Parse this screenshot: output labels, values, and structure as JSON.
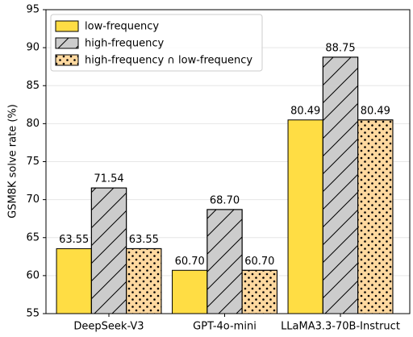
{
  "chart_data": {
    "type": "bar",
    "y_label": "GSM8K solve rate (%)",
    "categories": [
      "DeepSeek-V3",
      "GPT-4o-mini",
      "LLaMA3.3-70B-Instruct"
    ],
    "series": [
      {
        "name": "low-frequency",
        "color": "#ffdd44",
        "hatch": "none",
        "values": [
          63.55,
          60.7,
          80.49
        ],
        "value_labels": [
          "63.55",
          "60.70",
          "80.49"
        ]
      },
      {
        "name": "high-frequency",
        "color": "#cccccc",
        "hatch": "/",
        "values": [
          71.54,
          68.7,
          88.75
        ],
        "value_labels": [
          "71.54",
          "68.70",
          "88.75"
        ]
      },
      {
        "name": "high-frequency ∩ low-frequency",
        "color": "#ffd9a0",
        "hatch": ".",
        "values": [
          63.55,
          60.7,
          80.49
        ],
        "value_labels": [
          "63.55",
          "60.70",
          "80.49"
        ]
      }
    ],
    "ylim": [
      55,
      95
    ],
    "yticks": [
      55,
      60,
      65,
      70,
      75,
      80,
      85,
      90,
      95
    ],
    "grid": true,
    "legend": "upper left"
  }
}
